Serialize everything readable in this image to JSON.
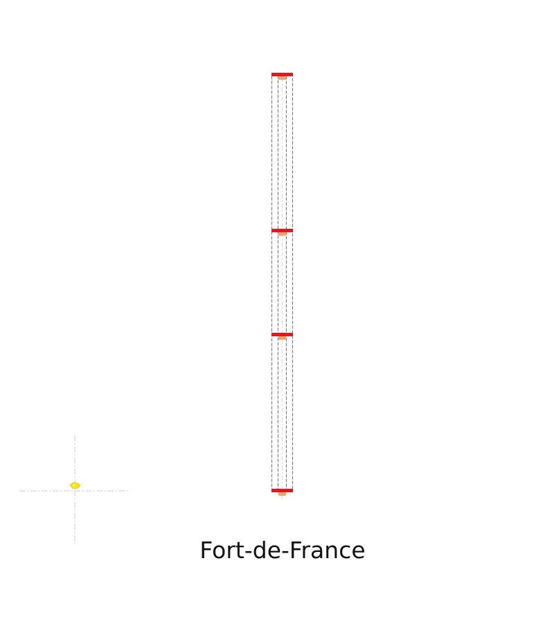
{
  "caption": "Fort-de-France",
  "colors": {
    "outline": "#808080",
    "marker_bar": "#e5161d",
    "marker_accent": "#f4a46a",
    "guide": "#cccccc",
    "origin": "#ffe600",
    "text": "#111111"
  },
  "icons": {
    "origin_marker": "yellow-pin-icon"
  }
}
